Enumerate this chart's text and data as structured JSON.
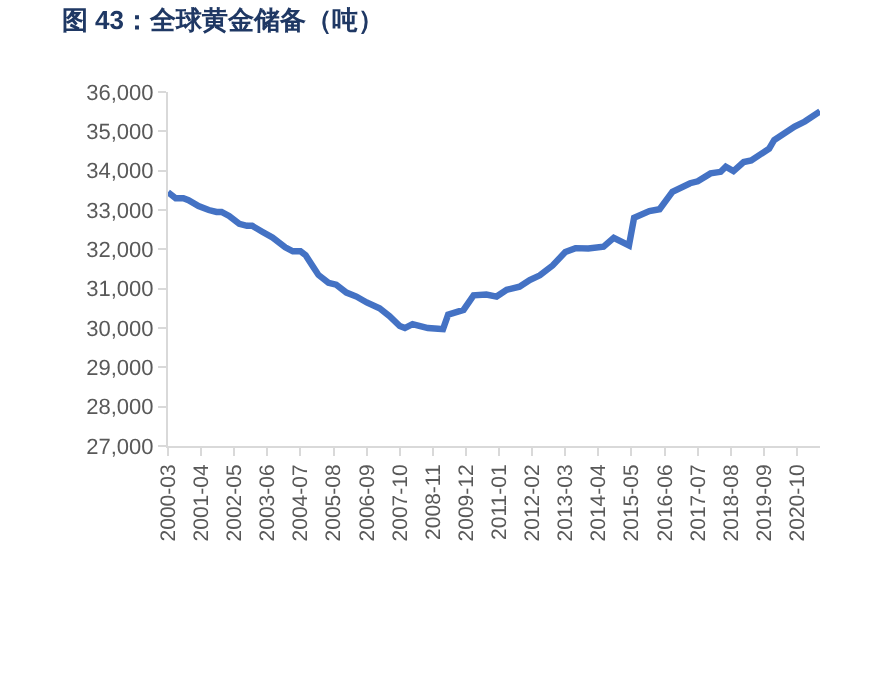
{
  "chart_data": {
    "type": "line",
    "title": "图 43：全球黄金储备（吨）",
    "x": [
      "2000-03",
      "2000-06",
      "2000-09",
      "2000-11",
      "2001-03",
      "2001-07",
      "2001-10",
      "2001-12",
      "2002-03",
      "2002-07",
      "2002-10",
      "2002-12",
      "2003-04",
      "2003-08",
      "2004-01",
      "2004-04",
      "2004-07",
      "2004-09",
      "2004-12",
      "2005-02",
      "2005-06",
      "2005-09",
      "2006-01",
      "2006-05",
      "2006-09",
      "2007-02",
      "2007-06",
      "2007-10",
      "2007-12",
      "2008-03",
      "2008-06",
      "2008-09",
      "2009-01",
      "2009-03",
      "2009-05",
      "2009-11",
      "2010-03",
      "2010-08",
      "2010-12",
      "2011-04",
      "2011-09",
      "2012-01",
      "2012-05",
      "2012-10",
      "2013-03",
      "2013-07",
      "2013-12",
      "2014-06",
      "2014-10",
      "2015-04",
      "2015-06",
      "2015-12",
      "2016-04",
      "2016-09",
      "2017-04",
      "2017-07",
      "2017-12",
      "2018-04",
      "2018-06",
      "2018-09",
      "2019-01",
      "2019-04",
      "2019-11",
      "2020-01",
      "2020-09",
      "2021-01",
      "2021-07"
    ],
    "series": [
      {
        "color": "#4472c4",
        "values": [
          33450,
          33300,
          33300,
          33250,
          33100,
          33000,
          32950,
          32950,
          32850,
          32650,
          32600,
          32600,
          32450,
          32300,
          32050,
          31950,
          31950,
          31850,
          31550,
          31350,
          31150,
          31100,
          30900,
          30800,
          30650,
          30500,
          30300,
          30050,
          30000,
          30100,
          30050,
          30000,
          29980,
          29970,
          30340,
          30460,
          30830,
          30850,
          30800,
          30970,
          31050,
          31220,
          31340,
          31590,
          31930,
          32030,
          32020,
          32070,
          32290,
          32100,
          32800,
          32970,
          33020,
          33460,
          33680,
          33730,
          33930,
          33970,
          34100,
          33990,
          34220,
          34260,
          34560,
          34780,
          35120,
          35250,
          35510
        ]
      }
    ],
    "xlim": [
      "2000-03",
      "2021-07"
    ],
    "xticks": [
      "2000-03",
      "2001-04",
      "2002-05",
      "2003-06",
      "2004-07",
      "2005-08",
      "2006-09",
      "2007-10",
      "2008-11",
      "2009-12",
      "2011-01",
      "2012-02",
      "2013-03",
      "2014-04",
      "2015-05",
      "2016-06",
      "2017-07",
      "2018-08",
      "2019-09",
      "2020-10"
    ],
    "ylim": [
      27000,
      36000
    ],
    "yticks": [
      {
        "value": 27000,
        "label": "27,000"
      },
      {
        "value": 28000,
        "label": "28,000"
      },
      {
        "value": 29000,
        "label": "29,000"
      },
      {
        "value": 30000,
        "label": "30,000"
      },
      {
        "value": 31000,
        "label": "31,000"
      },
      {
        "value": 32000,
        "label": "32,000"
      },
      {
        "value": 33000,
        "label": "33,000"
      },
      {
        "value": 34000,
        "label": "34,000"
      },
      {
        "value": 35000,
        "label": "35,000"
      },
      {
        "value": 36000,
        "label": "36,000"
      }
    ],
    "marker": "none",
    "line_style": "solid"
  }
}
